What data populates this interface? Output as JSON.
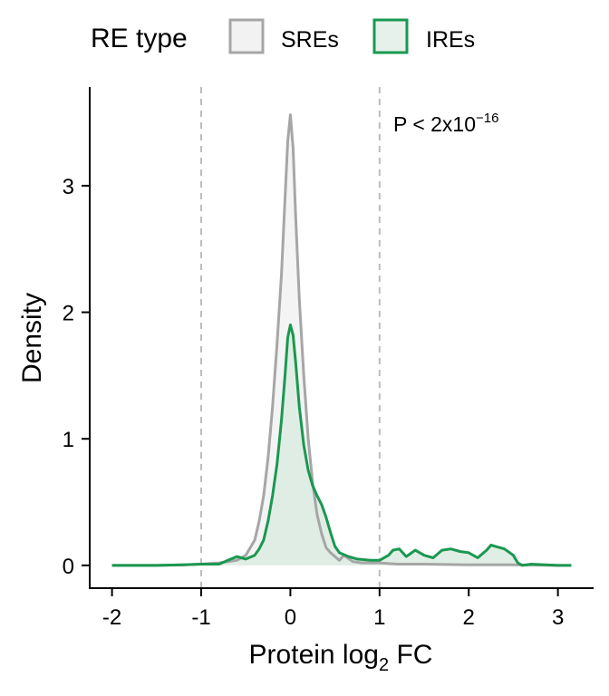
{
  "chart_data": {
    "type": "area",
    "xlabel": "Protein log",
    "xlabel_sub": "2",
    "xlabel_suffix": " FC",
    "ylabel": "Density",
    "xlim": [
      -2.25,
      3.4
    ],
    "ylim": [
      -0.18,
      3.78
    ],
    "x_ticks": [
      -2,
      -1,
      0,
      1,
      2,
      3
    ],
    "x_tick_labels": [
      "-2",
      "-1",
      "0",
      "1",
      "2",
      "3"
    ],
    "y_ticks": [
      0,
      1,
      2,
      3
    ],
    "y_tick_labels": [
      "0",
      "1",
      "2",
      "3"
    ],
    "vlines": [
      -1,
      1
    ],
    "grid": false,
    "legend": {
      "title": "RE type",
      "position": "top",
      "entries": [
        "SREs",
        "IREs"
      ]
    },
    "annotation": {
      "text": "P < 2x10",
      "superscript": "−16"
    },
    "series": [
      {
        "name": "SREs",
        "color": "#a6a6a6",
        "fill": "#f2f2f2",
        "points": [
          [
            -2.0,
            0.0
          ],
          [
            -1.5,
            0.0
          ],
          [
            -1.2,
            0.005
          ],
          [
            -1.0,
            0.01
          ],
          [
            -0.8,
            0.02
          ],
          [
            -0.6,
            0.04
          ],
          [
            -0.5,
            0.08
          ],
          [
            -0.4,
            0.2
          ],
          [
            -0.35,
            0.35
          ],
          [
            -0.3,
            0.55
          ],
          [
            -0.25,
            0.85
          ],
          [
            -0.2,
            1.25
          ],
          [
            -0.15,
            1.75
          ],
          [
            -0.1,
            2.3
          ],
          [
            -0.06,
            2.9
          ],
          [
            -0.03,
            3.35
          ],
          [
            0.0,
            3.56
          ],
          [
            0.03,
            3.3
          ],
          [
            0.06,
            2.75
          ],
          [
            0.1,
            2.1
          ],
          [
            0.15,
            1.5
          ],
          [
            0.2,
            1.0
          ],
          [
            0.25,
            0.65
          ],
          [
            0.3,
            0.4
          ],
          [
            0.35,
            0.25
          ],
          [
            0.4,
            0.14
          ],
          [
            0.45,
            0.1
          ],
          [
            0.5,
            0.07
          ],
          [
            0.55,
            0.04
          ],
          [
            0.6,
            0.08
          ],
          [
            0.7,
            0.03
          ],
          [
            0.8,
            0.02
          ],
          [
            0.9,
            0.02
          ],
          [
            1.0,
            0.02
          ],
          [
            1.2,
            0.01
          ],
          [
            1.5,
            0.01
          ],
          [
            2.0,
            0.005
          ],
          [
            2.5,
            0.005
          ],
          [
            3.0,
            0.0
          ],
          [
            3.15,
            0.0
          ]
        ]
      },
      {
        "name": "IREs",
        "color": "#1a9850",
        "fill": "#dcebe2",
        "points": [
          [
            -2.0,
            0.0
          ],
          [
            -1.5,
            0.0
          ],
          [
            -1.2,
            0.005
          ],
          [
            -1.0,
            0.01
          ],
          [
            -0.8,
            0.01
          ],
          [
            -0.7,
            0.04
          ],
          [
            -0.6,
            0.07
          ],
          [
            -0.5,
            0.05
          ],
          [
            -0.4,
            0.08
          ],
          [
            -0.35,
            0.13
          ],
          [
            -0.3,
            0.2
          ],
          [
            -0.25,
            0.35
          ],
          [
            -0.2,
            0.55
          ],
          [
            -0.15,
            0.8
          ],
          [
            -0.1,
            1.15
          ],
          [
            -0.06,
            1.5
          ],
          [
            -0.03,
            1.8
          ],
          [
            0.0,
            1.9
          ],
          [
            0.03,
            1.82
          ],
          [
            0.06,
            1.6
          ],
          [
            0.1,
            1.25
          ],
          [
            0.15,
            0.95
          ],
          [
            0.2,
            0.75
          ],
          [
            0.25,
            0.63
          ],
          [
            0.3,
            0.55
          ],
          [
            0.35,
            0.48
          ],
          [
            0.4,
            0.38
          ],
          [
            0.45,
            0.26
          ],
          [
            0.5,
            0.15
          ],
          [
            0.55,
            0.1
          ],
          [
            0.65,
            0.07
          ],
          [
            0.75,
            0.05
          ],
          [
            0.9,
            0.04
          ],
          [
            1.0,
            0.04
          ],
          [
            1.1,
            0.08
          ],
          [
            1.15,
            0.12
          ],
          [
            1.22,
            0.13
          ],
          [
            1.3,
            0.07
          ],
          [
            1.4,
            0.12
          ],
          [
            1.5,
            0.08
          ],
          [
            1.6,
            0.06
          ],
          [
            1.7,
            0.12
          ],
          [
            1.8,
            0.13
          ],
          [
            1.9,
            0.11
          ],
          [
            2.0,
            0.1
          ],
          [
            2.1,
            0.06
          ],
          [
            2.2,
            0.12
          ],
          [
            2.25,
            0.16
          ],
          [
            2.3,
            0.15
          ],
          [
            2.4,
            0.13
          ],
          [
            2.5,
            0.08
          ],
          [
            2.55,
            0.02
          ],
          [
            2.6,
            0.0
          ],
          [
            2.7,
            0.01
          ],
          [
            3.0,
            0.0
          ],
          [
            3.15,
            0.0
          ]
        ]
      }
    ]
  }
}
